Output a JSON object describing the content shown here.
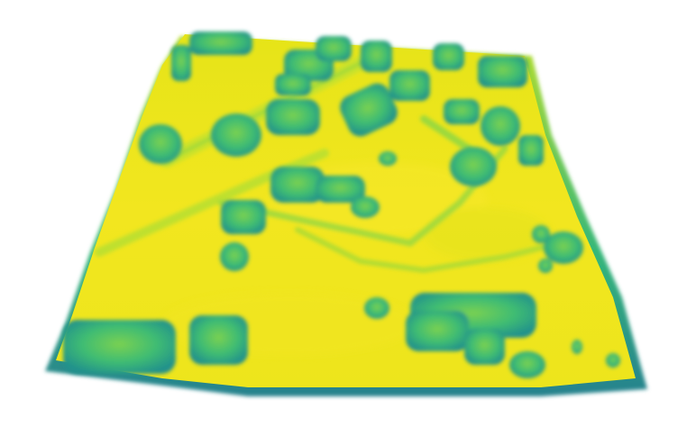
{
  "scene": {
    "subject": "3d-terrain-surface-render",
    "colormap": {
      "name": "viridis-like",
      "low": "#2a788e",
      "mid_low": "#22a884",
      "mid": "#7ad151",
      "high": "#fde725",
      "peak": "#e8e419"
    },
    "background": "#ffffff",
    "features": [
      "buildings",
      "trees",
      "roads",
      "ground-plane"
    ]
  }
}
